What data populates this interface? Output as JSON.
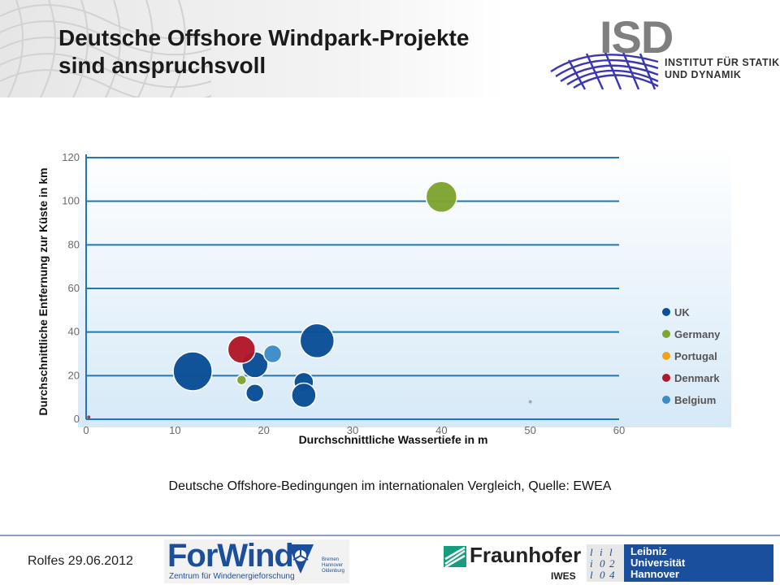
{
  "header": {
    "title_line1": "Deutsche Offshore Windpark-Projekte",
    "title_line2": "sind anspruchsvoll"
  },
  "logos": {
    "isd_letters": "ISD",
    "isd_line1": "INSTITUT FÜR STATIK",
    "isd_line2": "UND DYNAMIK",
    "forwind": "ForWind",
    "forwind_sub": "Zentrum für Windenergieforschung",
    "forwind_city1": "Bremen",
    "forwind_city2": "Hannover",
    "forwind_city3": "Oldenburg",
    "fraunhofer": "Fraunhofer",
    "fraunhofer_sub": "IWES",
    "leibniz_line1": "Leibniz",
    "leibniz_line2": "Universität",
    "leibniz_line3": "Hannover"
  },
  "chart_data": {
    "type": "scatter",
    "xlabel": "Durchschnittliche Wassertiefe in m",
    "ylabel": "Durchschnittliche Entfernung zur Küste in km",
    "xlim": [
      0,
      60
    ],
    "ylim": [
      0,
      120
    ],
    "xticks": [
      0,
      10,
      20,
      30,
      40,
      50,
      60
    ],
    "yticks": [
      0,
      20,
      40,
      60,
      80,
      100,
      120
    ],
    "grid": "horizontal",
    "legend_position": "right",
    "series": [
      {
        "name": "UK",
        "color": "#0b4f96",
        "points": [
          {
            "x": 12,
            "y": 22,
            "size": 24
          },
          {
            "x": 19,
            "y": 25,
            "size": 16
          },
          {
            "x": 19,
            "y": 12,
            "size": 11
          },
          {
            "x": 24.5,
            "y": 17,
            "size": 12
          },
          {
            "x": 24.5,
            "y": 11,
            "size": 15
          },
          {
            "x": 26,
            "y": 36,
            "size": 21
          }
        ]
      },
      {
        "name": "Germany",
        "color": "#7fa531",
        "points": [
          {
            "x": 40,
            "y": 102,
            "size": 19
          },
          {
            "x": 17.5,
            "y": 18,
            "size": 6
          }
        ]
      },
      {
        "name": "Portugal",
        "color": "#f0a21c",
        "points": []
      },
      {
        "name": "Denmark",
        "color": "#b2182b",
        "points": [
          {
            "x": 17.5,
            "y": 32,
            "size": 17
          }
        ]
      },
      {
        "name": "Belgium",
        "color": "#3d8cc8",
        "points": [
          {
            "x": 21,
            "y": 30,
            "size": 11
          }
        ]
      }
    ]
  },
  "caption": "Deutsche Offshore-Bedingungen im internationalen Vergleich, Quelle: EWEA",
  "footer": {
    "author_date": "Rolfes 29.06.2012"
  }
}
